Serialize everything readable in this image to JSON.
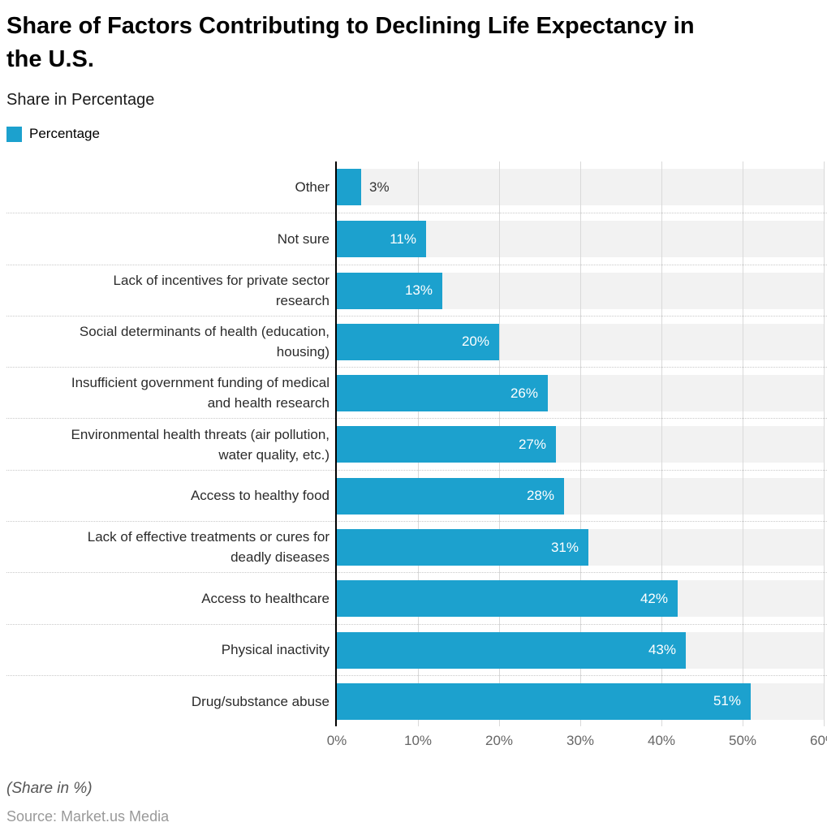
{
  "header": {
    "title_lines": [
      "Share of Factors Contributing to Declining Life Expectancy in",
      "the U.S."
    ],
    "subtitle": "Share in Percentage"
  },
  "legend": {
    "items": [
      {
        "label": "Percentage",
        "color": "#1CA1CE"
      }
    ]
  },
  "chart_data": {
    "type": "bar",
    "orientation": "horizontal",
    "title": "Share of Factors Contributing to Declining Life Expectancy in the U.S.",
    "subtitle": "Share in Percentage",
    "categories": [
      "Other",
      "Not sure",
      "Lack of incentives for private sector research",
      "Social determinants of health (education, housing)",
      "Insufficient government funding of medical and health research",
      "Environmental health threats (air pollution, water quality, etc.)",
      "Access to healthy food",
      "Lack of effective treatments or cures for deadly diseases",
      "Access to healthcare",
      "Physical inactivity",
      "Drug/substance abuse"
    ],
    "category_lines": [
      [
        "Other"
      ],
      [
        "Not sure"
      ],
      [
        "Lack of incentives for private sector",
        "research"
      ],
      [
        "Social determinants of health (education,",
        "housing)"
      ],
      [
        "Insufficient government funding of medical",
        "and health research"
      ],
      [
        "Environmental health threats (air pollution,",
        "water quality, etc.)"
      ],
      [
        "Access to healthy food"
      ],
      [
        "Lack of effective treatments or cures for",
        "deadly diseases"
      ],
      [
        "Access to healthcare"
      ],
      [
        "Physical inactivity"
      ],
      [
        "Drug/substance abuse"
      ]
    ],
    "series": [
      {
        "name": "Percentage",
        "values": [
          3,
          11,
          13,
          20,
          26,
          27,
          28,
          31,
          42,
          43,
          51
        ]
      }
    ],
    "value_suffix": "%",
    "xlim": [
      0,
      60
    ],
    "x_ticks": [
      "0%",
      "10%",
      "20%",
      "30%",
      "40%",
      "50%",
      "60%"
    ],
    "grid": true,
    "legend_position": "top-left",
    "colors": {
      "bar": "#1CA1CE",
      "band": "#F2F2F2",
      "gridline": "#D9D9D9",
      "separator": "#C9C9C9",
      "axis": "#000000",
      "value_label_inside": "#FFFFFF",
      "value_label_outside": "#333333"
    }
  },
  "footer": {
    "note": "(Share in %)",
    "source": "Source: Market.us Media"
  }
}
